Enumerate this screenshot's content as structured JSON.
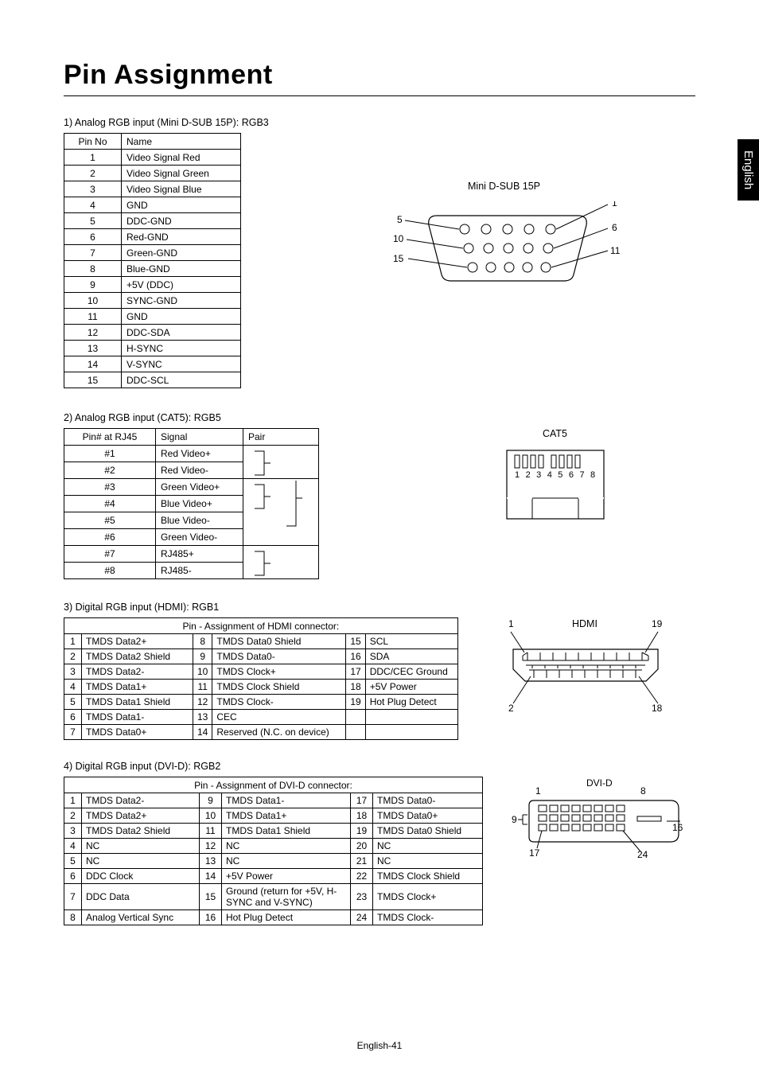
{
  "page": {
    "title": "Pin Assignment",
    "side_tab": "English",
    "footer": "English-41"
  },
  "sec1": {
    "label": "1)  Analog RGB input (Mini D-SUB 15P): RGB3",
    "headers": [
      "Pin No",
      "Name"
    ],
    "rows": [
      [
        "1",
        "Video Signal Red"
      ],
      [
        "2",
        "Video Signal Green"
      ],
      [
        "3",
        "Video Signal Blue"
      ],
      [
        "4",
        "GND"
      ],
      [
        "5",
        "DDC-GND"
      ],
      [
        "6",
        "Red-GND"
      ],
      [
        "7",
        "Green-GND"
      ],
      [
        "8",
        "Blue-GND"
      ],
      [
        "9",
        "+5V (DDC)"
      ],
      [
        "10",
        "SYNC-GND"
      ],
      [
        "11",
        "GND"
      ],
      [
        "12",
        "DDC-SDA"
      ],
      [
        "13",
        "H-SYNC"
      ],
      [
        "14",
        "V-SYNC"
      ],
      [
        "15",
        "DDC-SCL"
      ]
    ],
    "diagram_title": "Mini D-SUB 15P",
    "labels_left": [
      "5",
      "10",
      "15"
    ],
    "labels_right": [
      "1",
      "6",
      "11"
    ]
  },
  "sec2": {
    "label": "2)  Analog RGB input (CAT5): RGB5",
    "headers": [
      "Pin# at RJ45",
      "Signal",
      "Pair"
    ],
    "rows": [
      [
        "#1",
        "Red Video+"
      ],
      [
        "#2",
        "Red Video-"
      ],
      [
        "#3",
        "Green Video+"
      ],
      [
        "#4",
        "Blue Video+"
      ],
      [
        "#5",
        "Blue Video-"
      ],
      [
        "#6",
        "Green Video-"
      ],
      [
        "#7",
        "RJ485+"
      ],
      [
        "#8",
        "RJ485-"
      ]
    ],
    "diagram_title": "CAT5",
    "pin_labels": "1 2 3 4  5 6 7 8"
  },
  "sec3": {
    "label": "3)  Digital RGB input (HDMI): RGB1",
    "header": "Pin - Assignment of HDMI connector:",
    "rows": [
      [
        "1",
        "TMDS Data2+",
        "8",
        "TMDS Data0 Shield",
        "15",
        "SCL"
      ],
      [
        "2",
        "TMDS Data2 Shield",
        "9",
        "TMDS Data0-",
        "16",
        "SDA"
      ],
      [
        "3",
        "TMDS Data2-",
        "10",
        "TMDS Clock+",
        "17",
        "DDC/CEC Ground"
      ],
      [
        "4",
        "TMDS Data1+",
        "11",
        "TMDS Clock Shield",
        "18",
        "+5V Power"
      ],
      [
        "5",
        "TMDS Data1 Shield",
        "12",
        "TMDS Clock-",
        "19",
        "Hot Plug Detect"
      ],
      [
        "6",
        "TMDS Data1-",
        "13",
        "CEC",
        "",
        ""
      ],
      [
        "7",
        "TMDS Data0+",
        "14",
        "Reserved (N.C. on device)",
        "",
        ""
      ]
    ],
    "diagram_title": "HDMI",
    "corner_labels": [
      "1",
      "19",
      "2",
      "18"
    ]
  },
  "sec4": {
    "label": "4)  Digital RGB input (DVI-D): RGB2",
    "header": "Pin - Assignment of DVI-D connector:",
    "rows": [
      [
        "1",
        "TMDS Data2-",
        "9",
        "TMDS Data1-",
        "17",
        "TMDS Data0-"
      ],
      [
        "2",
        "TMDS Data2+",
        "10",
        "TMDS Data1+",
        "18",
        "TMDS Data0+"
      ],
      [
        "3",
        "TMDS Data2 Shield",
        "11",
        "TMDS Data1 Shield",
        "19",
        "TMDS Data0 Shield"
      ],
      [
        "4",
        "NC",
        "12",
        "NC",
        "20",
        "NC"
      ],
      [
        "5",
        "NC",
        "13",
        "NC",
        "21",
        "NC"
      ],
      [
        "6",
        "DDC Clock",
        "14",
        "+5V Power",
        "22",
        "TMDS Clock Shield"
      ],
      [
        "7",
        "DDC Data",
        "15",
        "Ground (return for +5V, H-SYNC and V-SYNC)",
        "23",
        "TMDS Clock+"
      ],
      [
        "8",
        "Analog Vertical Sync",
        "16",
        "Hot Plug Detect",
        "24",
        "TMDS Clock-"
      ]
    ],
    "diagram_title": "DVI-D",
    "corner_labels": [
      "1",
      "8",
      "9",
      "16",
      "17",
      "24"
    ]
  }
}
